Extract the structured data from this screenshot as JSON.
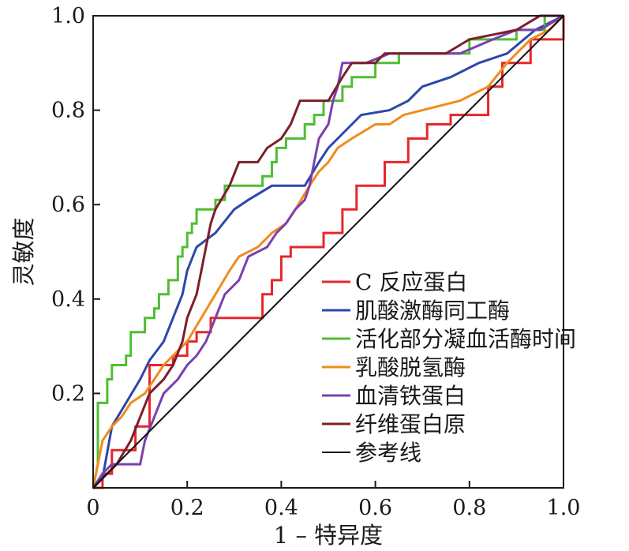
{
  "chart_data": {
    "type": "line",
    "title": "",
    "xlabel": "1 – 特异度",
    "ylabel": "灵敏度",
    "xlim": [
      0,
      1
    ],
    "ylim": [
      0,
      1
    ],
    "x_ticks": [
      "0",
      "0.2",
      "0.4",
      "0.6",
      "0.8",
      "1.0"
    ],
    "y_ticks": [
      "0.2",
      "0.4",
      "0.6",
      "0.8",
      "1.0"
    ],
    "grid": false,
    "legend_position": "bottom-right",
    "series": [
      {
        "name": "C 反应蛋白",
        "color": "#e8262b",
        "points": [
          [
            0,
            0
          ],
          [
            0.02,
            0
          ],
          [
            0.02,
            0.03
          ],
          [
            0.04,
            0.03
          ],
          [
            0.04,
            0.08
          ],
          [
            0.09,
            0.08
          ],
          [
            0.09,
            0.13
          ],
          [
            0.12,
            0.13
          ],
          [
            0.12,
            0.26
          ],
          [
            0.17,
            0.26
          ],
          [
            0.17,
            0.28
          ],
          [
            0.2,
            0.28
          ],
          [
            0.2,
            0.31
          ],
          [
            0.22,
            0.31
          ],
          [
            0.22,
            0.33
          ],
          [
            0.25,
            0.33
          ],
          [
            0.25,
            0.36
          ],
          [
            0.36,
            0.36
          ],
          [
            0.36,
            0.41
          ],
          [
            0.38,
            0.41
          ],
          [
            0.38,
            0.44
          ],
          [
            0.4,
            0.44
          ],
          [
            0.4,
            0.49
          ],
          [
            0.42,
            0.49
          ],
          [
            0.42,
            0.51
          ],
          [
            0.49,
            0.51
          ],
          [
            0.49,
            0.54
          ],
          [
            0.53,
            0.54
          ],
          [
            0.53,
            0.59
          ],
          [
            0.56,
            0.59
          ],
          [
            0.56,
            0.64
          ],
          [
            0.62,
            0.64
          ],
          [
            0.62,
            0.69
          ],
          [
            0.67,
            0.69
          ],
          [
            0.67,
            0.74
          ],
          [
            0.71,
            0.74
          ],
          [
            0.71,
            0.77
          ],
          [
            0.76,
            0.77
          ],
          [
            0.76,
            0.79
          ],
          [
            0.84,
            0.79
          ],
          [
            0.84,
            0.85
          ],
          [
            0.87,
            0.85
          ],
          [
            0.87,
            0.9
          ],
          [
            0.93,
            0.9
          ],
          [
            0.93,
            0.95
          ],
          [
            1,
            0.95
          ],
          [
            1,
            1
          ]
        ]
      },
      {
        "name": "肌酸激酶同工酶",
        "color": "#2d47a8",
        "points": [
          [
            0,
            0
          ],
          [
            0.02,
            0.02
          ],
          [
            0.04,
            0.13
          ],
          [
            0.07,
            0.18
          ],
          [
            0.1,
            0.23
          ],
          [
            0.12,
            0.27
          ],
          [
            0.15,
            0.31
          ],
          [
            0.17,
            0.36
          ],
          [
            0.19,
            0.41
          ],
          [
            0.2,
            0.46
          ],
          [
            0.22,
            0.51
          ],
          [
            0.26,
            0.54
          ],
          [
            0.3,
            0.59
          ],
          [
            0.33,
            0.61
          ],
          [
            0.38,
            0.64
          ],
          [
            0.45,
            0.64
          ],
          [
            0.48,
            0.69
          ],
          [
            0.5,
            0.72
          ],
          [
            0.53,
            0.75
          ],
          [
            0.57,
            0.79
          ],
          [
            0.63,
            0.8
          ],
          [
            0.67,
            0.82
          ],
          [
            0.7,
            0.85
          ],
          [
            0.76,
            0.87
          ],
          [
            0.82,
            0.9
          ],
          [
            0.88,
            0.92
          ],
          [
            0.94,
            0.97
          ],
          [
            1,
            1
          ]
        ]
      },
      {
        "name": "活化部分凝血活酶时间",
        "color": "#4fbe34",
        "points": [
          [
            0,
            0
          ],
          [
            0.01,
            0.05
          ],
          [
            0.01,
            0.18
          ],
          [
            0.03,
            0.18
          ],
          [
            0.03,
            0.23
          ],
          [
            0.04,
            0.23
          ],
          [
            0.04,
            0.26
          ],
          [
            0.07,
            0.26
          ],
          [
            0.07,
            0.28
          ],
          [
            0.08,
            0.28
          ],
          [
            0.08,
            0.33
          ],
          [
            0.11,
            0.33
          ],
          [
            0.11,
            0.36
          ],
          [
            0.13,
            0.36
          ],
          [
            0.13,
            0.38
          ],
          [
            0.14,
            0.38
          ],
          [
            0.14,
            0.41
          ],
          [
            0.16,
            0.41
          ],
          [
            0.16,
            0.44
          ],
          [
            0.18,
            0.44
          ],
          [
            0.18,
            0.49
          ],
          [
            0.19,
            0.49
          ],
          [
            0.19,
            0.51
          ],
          [
            0.2,
            0.51
          ],
          [
            0.2,
            0.54
          ],
          [
            0.21,
            0.54
          ],
          [
            0.21,
            0.56
          ],
          [
            0.22,
            0.56
          ],
          [
            0.22,
            0.59
          ],
          [
            0.26,
            0.59
          ],
          [
            0.26,
            0.61
          ],
          [
            0.28,
            0.61
          ],
          [
            0.28,
            0.64
          ],
          [
            0.36,
            0.64
          ],
          [
            0.36,
            0.66
          ],
          [
            0.38,
            0.66
          ],
          [
            0.38,
            0.69
          ],
          [
            0.39,
            0.69
          ],
          [
            0.39,
            0.72
          ],
          [
            0.41,
            0.72
          ],
          [
            0.41,
            0.74
          ],
          [
            0.45,
            0.74
          ],
          [
            0.45,
            0.77
          ],
          [
            0.47,
            0.77
          ],
          [
            0.47,
            0.79
          ],
          [
            0.49,
            0.79
          ],
          [
            0.49,
            0.82
          ],
          [
            0.53,
            0.82
          ],
          [
            0.53,
            0.85
          ],
          [
            0.55,
            0.85
          ],
          [
            0.55,
            0.87
          ],
          [
            0.6,
            0.87
          ],
          [
            0.6,
            0.9
          ],
          [
            0.65,
            0.9
          ],
          [
            0.65,
            0.92
          ],
          [
            0.8,
            0.92
          ],
          [
            0.8,
            0.95
          ],
          [
            0.9,
            0.95
          ],
          [
            0.9,
            0.97
          ],
          [
            0.96,
            0.97
          ],
          [
            0.96,
            1
          ],
          [
            1,
            1
          ]
        ]
      },
      {
        "name": "乳酸脱氢酶",
        "color": "#f08c1e",
        "points": [
          [
            0,
            0
          ],
          [
            0.01,
            0.05
          ],
          [
            0.02,
            0.1
          ],
          [
            0.04,
            0.13
          ],
          [
            0.06,
            0.15
          ],
          [
            0.08,
            0.18
          ],
          [
            0.11,
            0.2
          ],
          [
            0.13,
            0.23
          ],
          [
            0.15,
            0.26
          ],
          [
            0.17,
            0.28
          ],
          [
            0.2,
            0.31
          ],
          [
            0.23,
            0.36
          ],
          [
            0.26,
            0.41
          ],
          [
            0.29,
            0.46
          ],
          [
            0.31,
            0.49
          ],
          [
            0.35,
            0.51
          ],
          [
            0.38,
            0.54
          ],
          [
            0.41,
            0.56
          ],
          [
            0.43,
            0.59
          ],
          [
            0.46,
            0.64
          ],
          [
            0.48,
            0.67
          ],
          [
            0.5,
            0.69
          ],
          [
            0.52,
            0.72
          ],
          [
            0.55,
            0.74
          ],
          [
            0.6,
            0.77
          ],
          [
            0.63,
            0.77
          ],
          [
            0.66,
            0.79
          ],
          [
            0.7,
            0.8
          ],
          [
            0.78,
            0.82
          ],
          [
            0.84,
            0.85
          ],
          [
            0.88,
            0.9
          ],
          [
            0.9,
            0.92
          ],
          [
            0.93,
            0.95
          ],
          [
            0.97,
            0.97
          ],
          [
            1,
            1
          ]
        ]
      },
      {
        "name": "血清铁蛋白",
        "color": "#7a40b0",
        "points": [
          [
            0,
            0
          ],
          [
            0.02,
            0.03
          ],
          [
            0.04,
            0.05
          ],
          [
            0.1,
            0.05
          ],
          [
            0.11,
            0.1
          ],
          [
            0.13,
            0.15
          ],
          [
            0.15,
            0.2
          ],
          [
            0.18,
            0.23
          ],
          [
            0.2,
            0.26
          ],
          [
            0.22,
            0.28
          ],
          [
            0.24,
            0.31
          ],
          [
            0.26,
            0.36
          ],
          [
            0.28,
            0.41
          ],
          [
            0.31,
            0.44
          ],
          [
            0.33,
            0.49
          ],
          [
            0.37,
            0.51
          ],
          [
            0.39,
            0.54
          ],
          [
            0.41,
            0.56
          ],
          [
            0.43,
            0.59
          ],
          [
            0.45,
            0.61
          ],
          [
            0.46,
            0.64
          ],
          [
            0.47,
            0.69
          ],
          [
            0.48,
            0.74
          ],
          [
            0.5,
            0.77
          ],
          [
            0.51,
            0.82
          ],
          [
            0.52,
            0.85
          ],
          [
            0.53,
            0.9
          ],
          [
            0.58,
            0.9
          ],
          [
            0.63,
            0.92
          ],
          [
            0.7,
            0.92
          ],
          [
            0.78,
            0.92
          ],
          [
            0.85,
            0.95
          ],
          [
            0.9,
            0.97
          ],
          [
            0.95,
            0.97
          ],
          [
            1,
            1
          ]
        ]
      },
      {
        "name": "纤维蛋白原",
        "color": "#7b1f2a",
        "points": [
          [
            0,
            0
          ],
          [
            0.02,
            0.02
          ],
          [
            0.05,
            0.05
          ],
          [
            0.08,
            0.1
          ],
          [
            0.1,
            0.15
          ],
          [
            0.12,
            0.2
          ],
          [
            0.15,
            0.23
          ],
          [
            0.17,
            0.26
          ],
          [
            0.19,
            0.31
          ],
          [
            0.2,
            0.36
          ],
          [
            0.22,
            0.41
          ],
          [
            0.23,
            0.46
          ],
          [
            0.24,
            0.51
          ],
          [
            0.25,
            0.56
          ],
          [
            0.26,
            0.59
          ],
          [
            0.29,
            0.64
          ],
          [
            0.31,
            0.69
          ],
          [
            0.35,
            0.69
          ],
          [
            0.37,
            0.72
          ],
          [
            0.4,
            0.74
          ],
          [
            0.42,
            0.77
          ],
          [
            0.44,
            0.82
          ],
          [
            0.5,
            0.82
          ],
          [
            0.53,
            0.87
          ],
          [
            0.55,
            0.9
          ],
          [
            0.6,
            0.9
          ],
          [
            0.62,
            0.92
          ],
          [
            0.75,
            0.92
          ],
          [
            0.8,
            0.95
          ],
          [
            0.9,
            0.97
          ],
          [
            0.95,
            1
          ],
          [
            1,
            1
          ]
        ]
      },
      {
        "name": "参考线",
        "color": "#111111",
        "points": [
          [
            0,
            0
          ],
          [
            1,
            1
          ]
        ]
      }
    ]
  }
}
